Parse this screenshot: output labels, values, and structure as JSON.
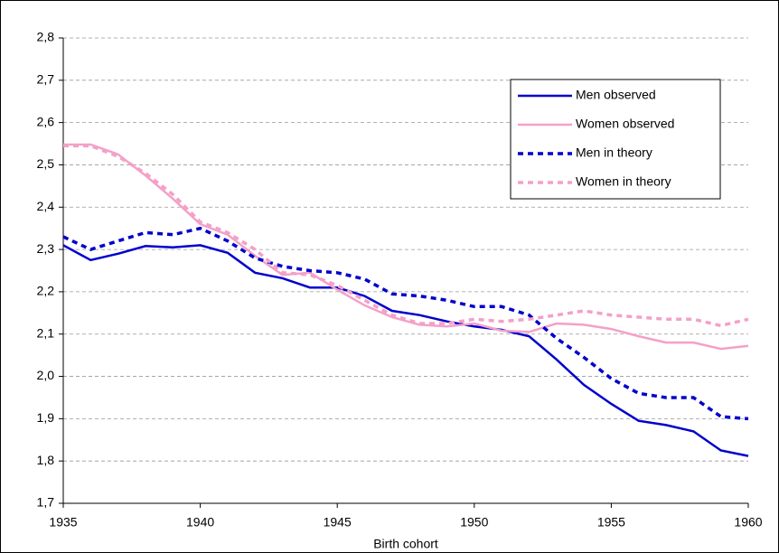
{
  "chart_data": {
    "type": "line",
    "x_label": "Birth cohort",
    "x": [
      1935,
      1936,
      1937,
      1938,
      1939,
      1940,
      1941,
      1942,
      1943,
      1944,
      1945,
      1946,
      1947,
      1948,
      1949,
      1950,
      1951,
      1952,
      1953,
      1954,
      1955,
      1956,
      1957,
      1958,
      1959,
      1960
    ],
    "xlim": [
      1935,
      1960
    ],
    "xticks": [
      1935,
      1940,
      1945,
      1950,
      1955,
      1960
    ],
    "ylim": [
      1.7,
      2.8
    ],
    "yticks": [
      {
        "value": 1.7,
        "label": "1,7"
      },
      {
        "value": 1.8,
        "label": "1,8"
      },
      {
        "value": 1.9,
        "label": "1,9"
      },
      {
        "value": 2.0,
        "label": "2,0"
      },
      {
        "value": 2.1,
        "label": "2,1"
      },
      {
        "value": 2.2,
        "label": "2,2"
      },
      {
        "value": 2.3,
        "label": "2,3"
      },
      {
        "value": 2.4,
        "label": "2,4"
      },
      {
        "value": 2.5,
        "label": "2,5"
      },
      {
        "value": 2.6,
        "label": "2,6"
      },
      {
        "value": 2.7,
        "label": "2,7"
      },
      {
        "value": 2.8,
        "label": "2,8"
      }
    ],
    "grid": true,
    "legend": "upper right",
    "series": [
      {
        "name": "Men observed",
        "color": "#0000cc",
        "style": "solid",
        "values": [
          2.31,
          2.275,
          2.29,
          2.308,
          2.305,
          2.31,
          2.292,
          2.245,
          2.232,
          2.21,
          2.21,
          2.19,
          2.155,
          2.145,
          2.13,
          2.118,
          2.11,
          2.095,
          2.04,
          1.98,
          1.935,
          1.895,
          1.885,
          1.87,
          1.825,
          1.812
        ]
      },
      {
        "name": "Women observed",
        "color": "#f4a0c8",
        "style": "solid",
        "values": [
          2.548,
          2.548,
          2.525,
          2.475,
          2.42,
          2.36,
          2.335,
          2.285,
          2.24,
          2.245,
          2.205,
          2.168,
          2.14,
          2.122,
          2.118,
          2.125,
          2.108,
          2.105,
          2.125,
          2.122,
          2.112,
          2.095,
          2.08,
          2.08,
          2.065,
          2.072
        ]
      },
      {
        "name": "Men in theory",
        "color": "#0000cc",
        "style": "dashed",
        "values": [
          2.33,
          2.3,
          2.32,
          2.34,
          2.335,
          2.35,
          2.32,
          2.28,
          2.26,
          2.25,
          2.245,
          2.23,
          2.195,
          2.19,
          2.18,
          2.165,
          2.165,
          2.145,
          2.09,
          2.045,
          1.995,
          1.96,
          1.95,
          1.95,
          1.905,
          1.9
        ]
      },
      {
        "name": "Women in theory",
        "color": "#f4a0c8",
        "style": "dashed",
        "values": [
          2.545,
          2.545,
          2.52,
          2.48,
          2.43,
          2.365,
          2.34,
          2.3,
          2.245,
          2.24,
          2.215,
          2.18,
          2.145,
          2.125,
          2.125,
          2.135,
          2.13,
          2.135,
          2.145,
          2.155,
          2.145,
          2.14,
          2.135,
          2.135,
          2.12,
          2.135
        ]
      }
    ]
  }
}
